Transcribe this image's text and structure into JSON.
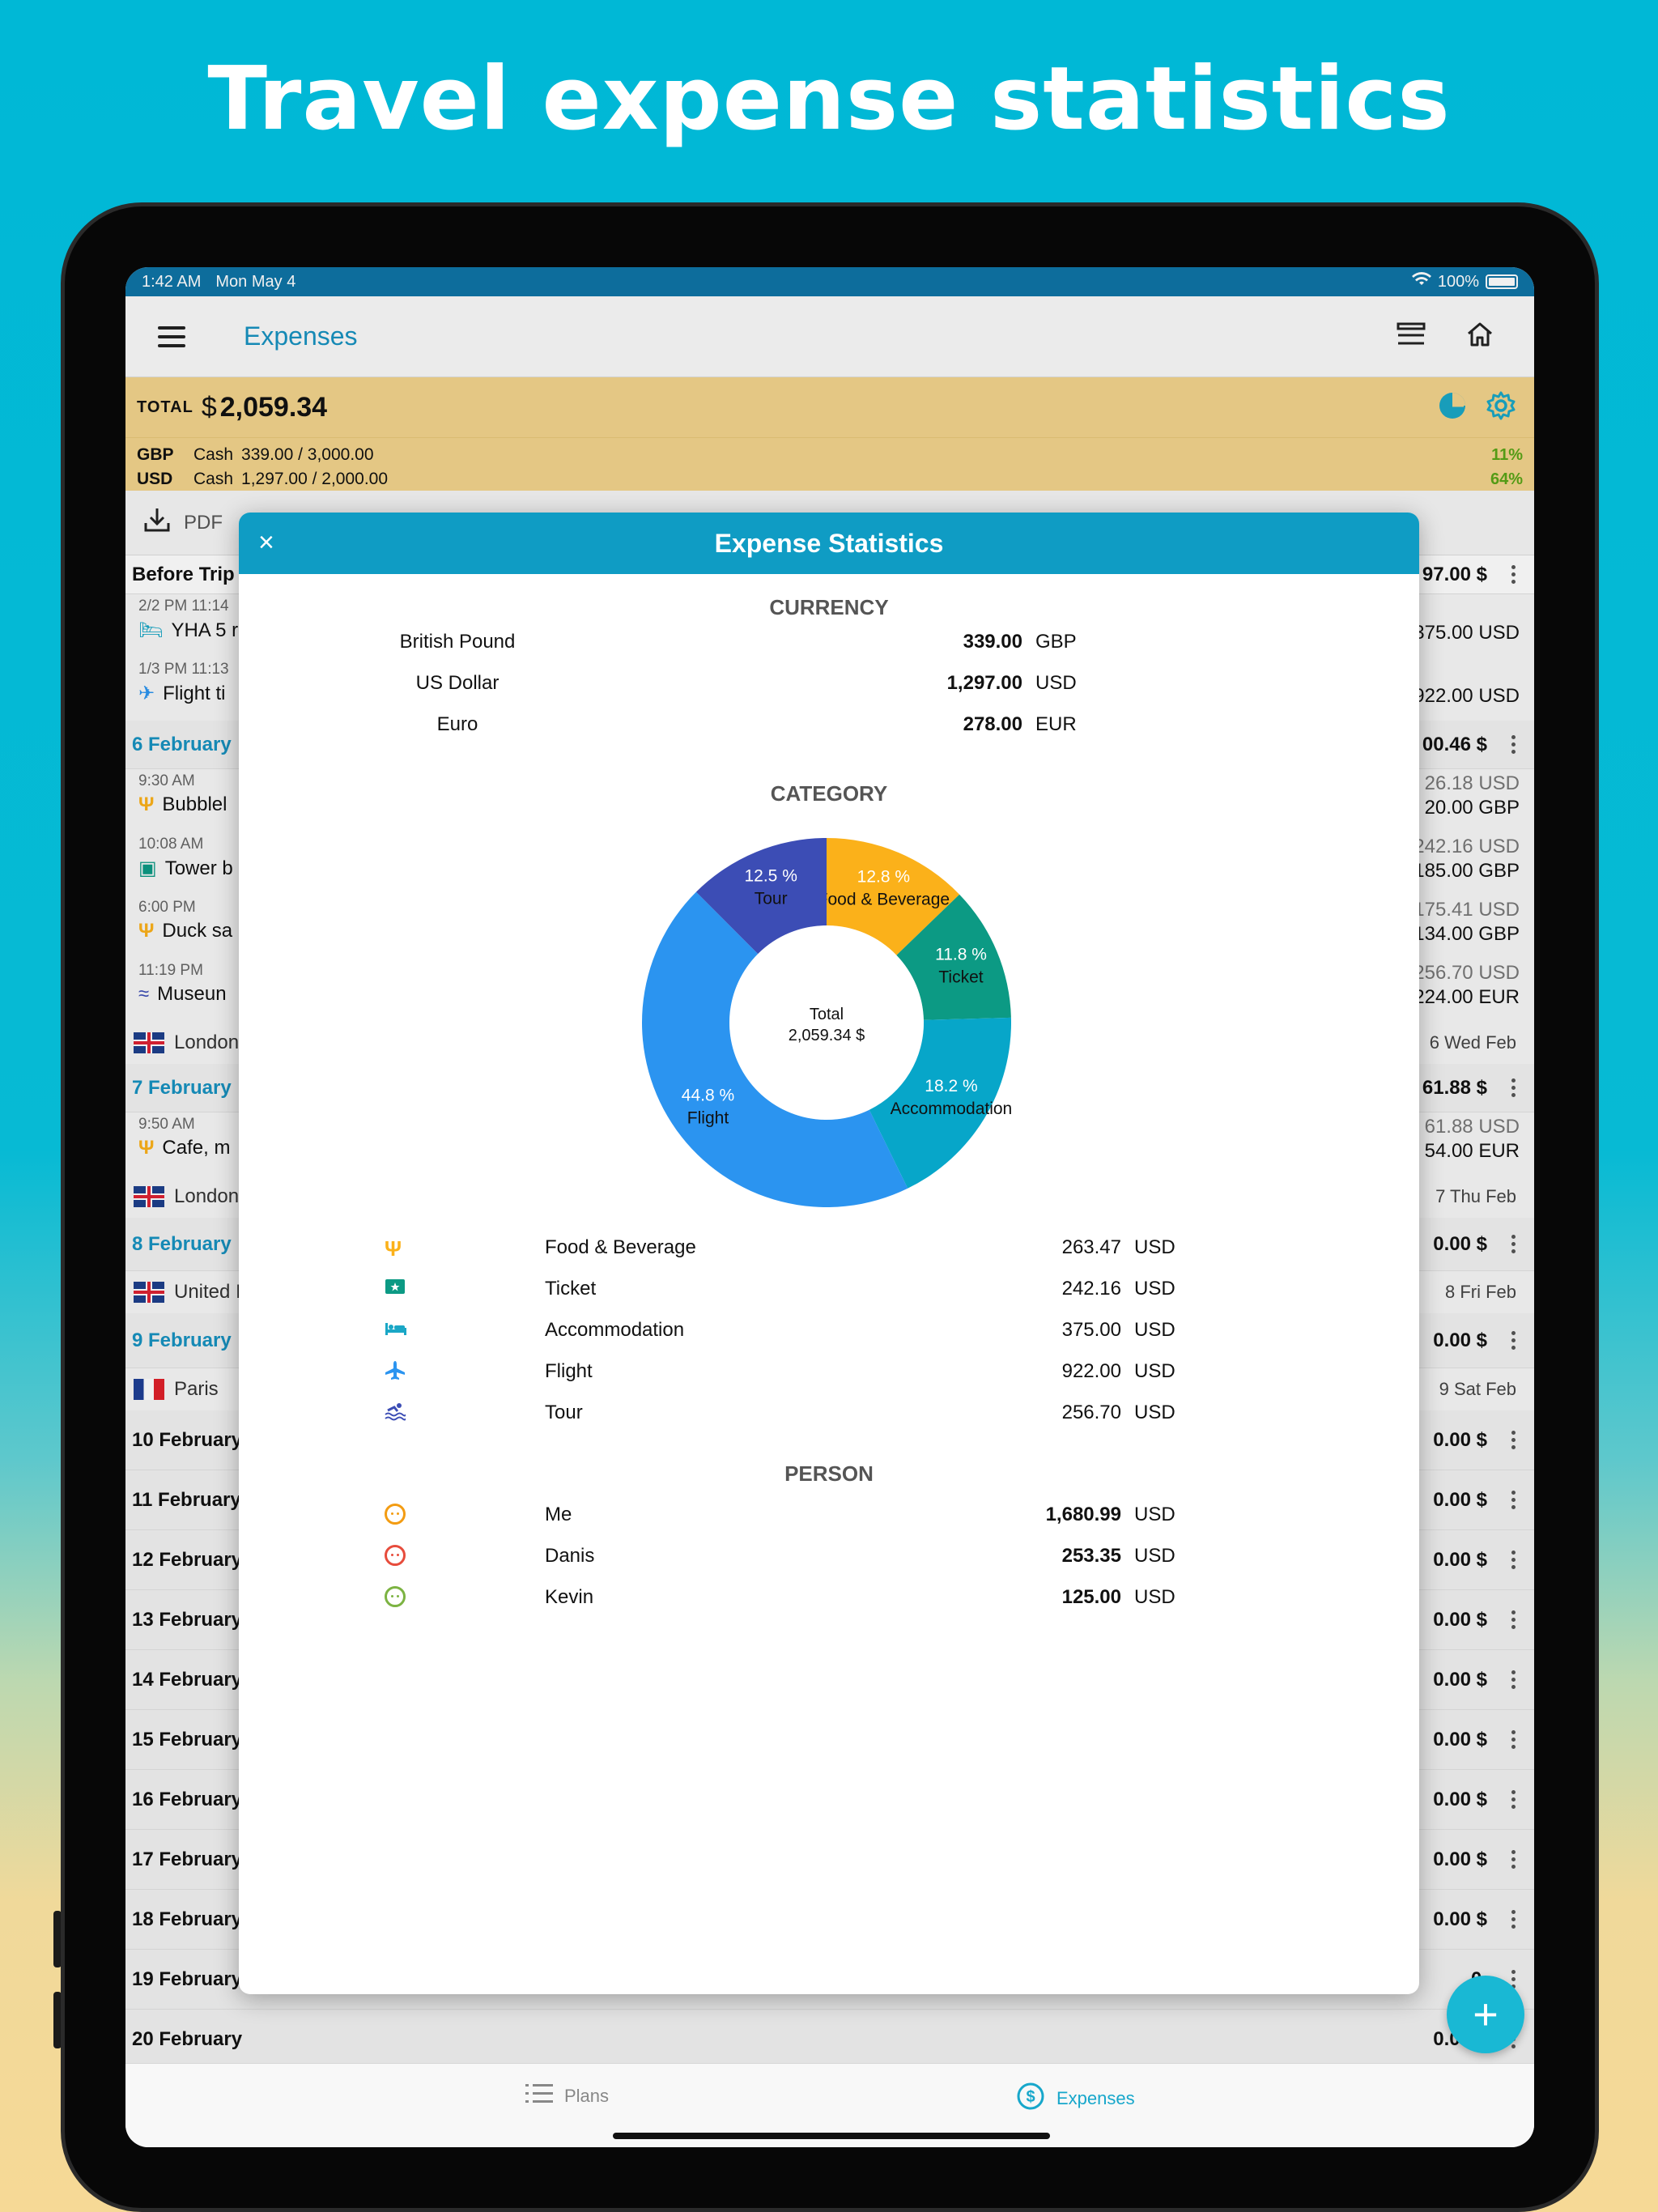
{
  "headline": "Travel expense statistics",
  "status": {
    "time": "1:42 AM",
    "date": "Mon May 4",
    "battery": "100%"
  },
  "nav": {
    "title": "Expenses"
  },
  "totals": {
    "label": "TOTAL",
    "currency_symbol": "$",
    "amount": "2,059.34"
  },
  "cash": [
    {
      "code": "GBP",
      "type": "Cash",
      "value": "339.00 / 3,000.00",
      "pct": "11%"
    },
    {
      "code": "USD",
      "type": "Cash",
      "value": "1,297.00 / 2,000.00",
      "pct": "64%"
    }
  ],
  "subbar": {
    "pdf": "PDF"
  },
  "list": {
    "before_trip": {
      "label": "Before Trip",
      "amount": "97.00 $"
    },
    "items": [
      {
        "time": "2/2 PM 11:14",
        "name": "YHA 5 r",
        "r2": "375.00 USD"
      },
      {
        "time": "1/3 PM 11:13",
        "name": "Flight ti",
        "r2": "922.00 USD"
      },
      {
        "time": "9:30 AM",
        "name": "Bubblel",
        "r1": "26.18 USD",
        "r2": "20.00 GBP"
      },
      {
        "time": "10:08 AM",
        "name": "Tower b",
        "r1": "242.16 USD",
        "r2": "185.00 GBP"
      },
      {
        "time": "6:00 PM",
        "name": "Duck sa",
        "r1": "175.41 USD",
        "r2": "134.00 GBP"
      },
      {
        "time": "11:19 PM",
        "name": "Museun",
        "r1": "256.70 USD",
        "r2": "224.00 EUR"
      },
      {
        "time": "9:50 AM",
        "name": "Cafe, m",
        "r1": "61.88 USD",
        "r2": "54.00 EUR"
      }
    ],
    "days": [
      {
        "date": "6 February",
        "amount": "00.46 $"
      },
      {
        "date": "7 February",
        "amount": "61.88 $"
      },
      {
        "date": "8 February",
        "amount": "0.00 $"
      },
      {
        "date": "9 February",
        "amount": "0.00 $"
      },
      {
        "date": "10 February",
        "amount": "0.00 $"
      },
      {
        "date": "11 February",
        "amount": "0.00 $"
      },
      {
        "date": "12 February",
        "amount": "0.00 $"
      },
      {
        "date": "13 February",
        "amount": "0.00 $"
      },
      {
        "date": "14 February",
        "amount": "0.00 $"
      },
      {
        "date": "15 February",
        "amount": "0.00 $"
      },
      {
        "date": "16 February",
        "amount": "0.00 $"
      },
      {
        "date": "17 February",
        "amount": "0.00 $"
      },
      {
        "date": "18 February",
        "amount": "0.00 $"
      },
      {
        "date": "19 February",
        "amount": "0."
      },
      {
        "date": "20 February",
        "amount": "0.00 $"
      }
    ],
    "locations": [
      {
        "name": "London",
        "right": "6 Wed Feb"
      },
      {
        "name": "London",
        "right": "7 Thu Feb"
      },
      {
        "name": "United I",
        "right": "8 Fri Feb"
      },
      {
        "name": "Paris",
        "right": "9 Sat Feb"
      }
    ]
  },
  "tabs": {
    "plans": "Plans",
    "expenses": "Expenses"
  },
  "modal": {
    "title": "Expense Statistics",
    "close": "×",
    "currency_title": "CURRENCY",
    "currencies": [
      {
        "name": "British Pound",
        "value": "339.00",
        "code": "GBP"
      },
      {
        "name": "US Dollar",
        "value": "1,297.00",
        "code": "USD"
      },
      {
        "name": "Euro",
        "value": "278.00",
        "code": "EUR"
      }
    ],
    "category_title": "CATEGORY",
    "categories": [
      {
        "icon": "fork-knife-icon",
        "name": "Food & Beverage",
        "value": "263.47",
        "code": "USD"
      },
      {
        "icon": "ticket-icon",
        "name": "Ticket",
        "value": "242.16",
        "code": "USD"
      },
      {
        "icon": "bed-icon",
        "name": "Accommodation",
        "value": "375.00",
        "code": "USD"
      },
      {
        "icon": "airplane-icon",
        "name": "Flight",
        "value": "922.00",
        "code": "USD"
      },
      {
        "icon": "swim-icon",
        "name": "Tour",
        "value": "256.70",
        "code": "USD"
      }
    ],
    "person_title": "PERSON",
    "persons": [
      {
        "name": "Me",
        "value": "1,680.99",
        "code": "USD",
        "color": "#f39c12"
      },
      {
        "name": "Danis",
        "value": "253.35",
        "code": "USD",
        "color": "#e74c3c"
      },
      {
        "name": "Kevin",
        "value": "125.00",
        "code": "USD",
        "color": "#7cb342"
      }
    ]
  },
  "chart_data": {
    "type": "pie",
    "center_label": "Total",
    "center_value": "2,059.34 $",
    "slices": [
      {
        "name": "Food & Beverage",
        "pct": 12.8,
        "label": "12.8 %",
        "color": "#fbb11a"
      },
      {
        "name": "Ticket",
        "pct": 11.8,
        "label": "11.8 %",
        "color": "#0c9a84"
      },
      {
        "name": "Accommodation",
        "pct": 18.2,
        "label": "18.2 %",
        "color": "#07a6c9"
      },
      {
        "name": "Flight",
        "pct": 44.8,
        "label": "44.8 %",
        "color": "#2b94f0"
      },
      {
        "name": "Tour",
        "pct": 12.5,
        "label": "12.5 %",
        "color": "#3c4db5"
      }
    ]
  }
}
